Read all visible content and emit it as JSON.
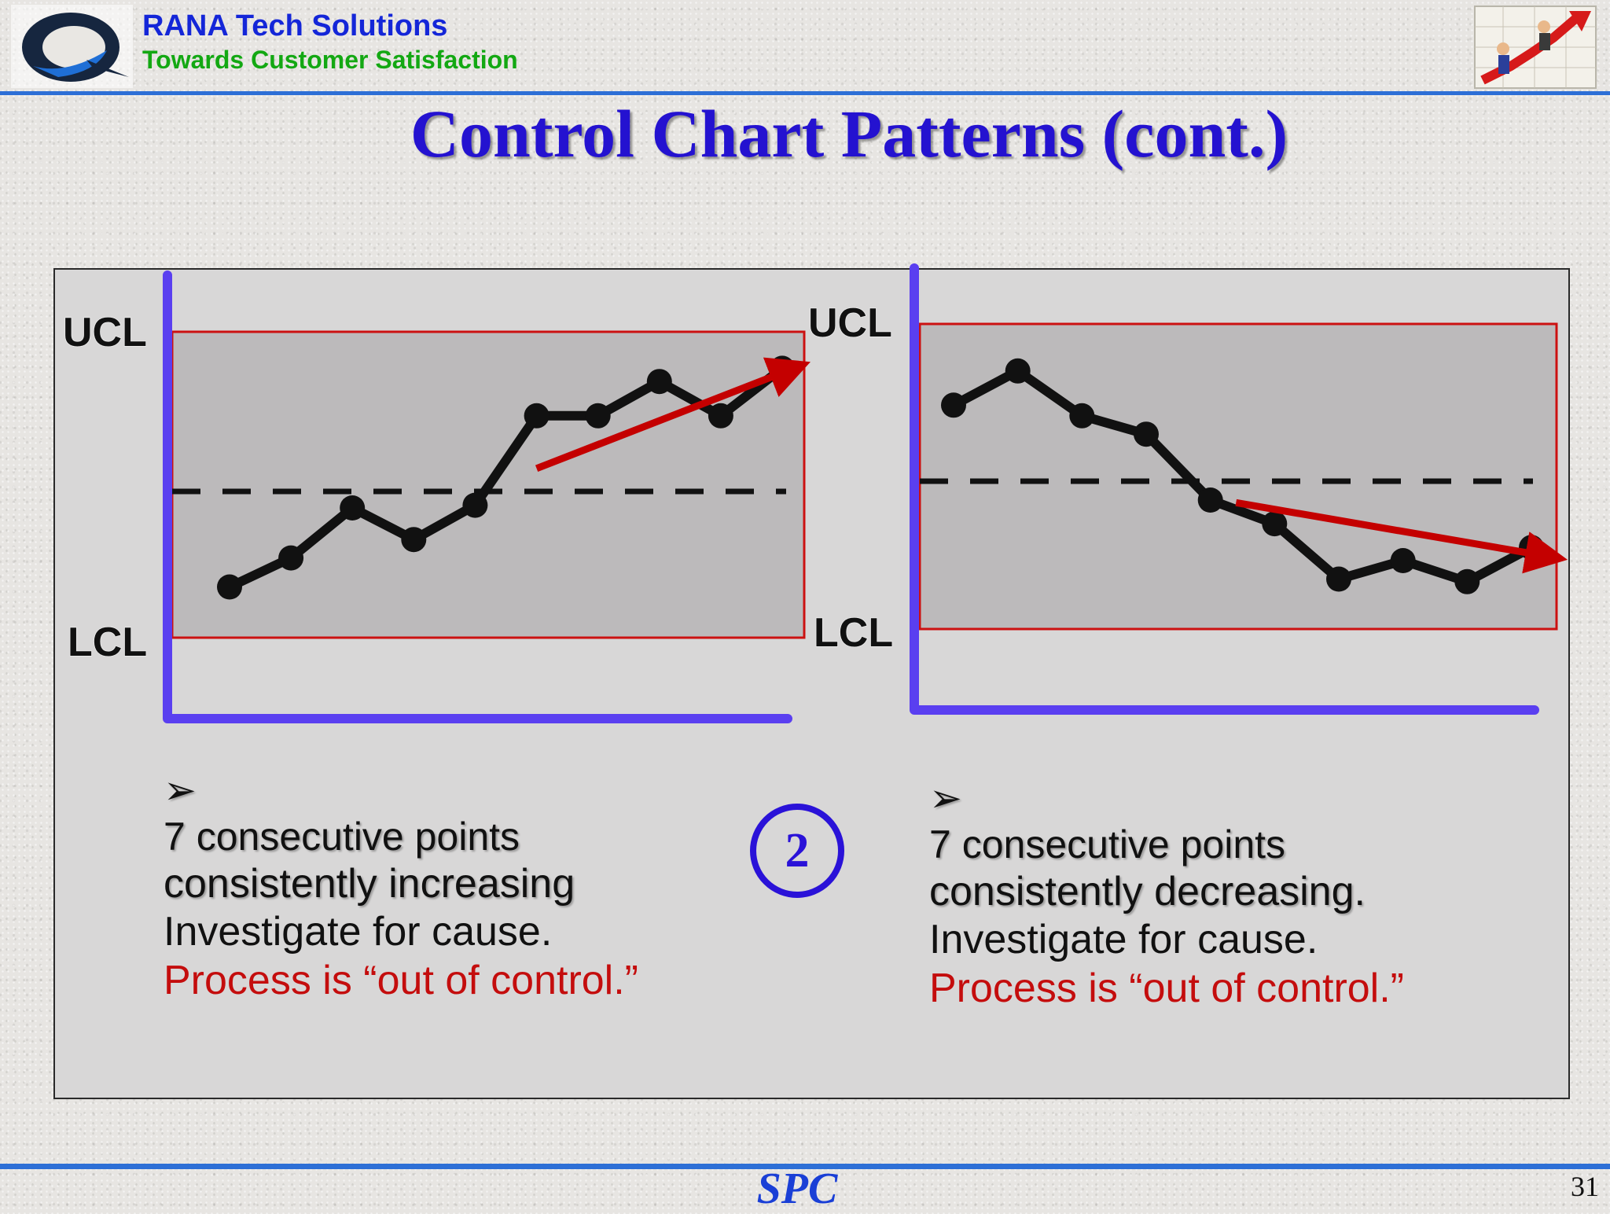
{
  "header": {
    "company": "RANA Tech Solutions",
    "tagline": "Towards Customer Satisfaction"
  },
  "title": "Control Chart Patterns (cont.)",
  "colors": {
    "title": "#2412d0",
    "axis": "#5a3ff0",
    "limit_lines": "#cc1111",
    "trend_arrow": "#c40000",
    "out_of_control_text": "#c40d0d",
    "header_rule": "#2d6fd6"
  },
  "charts": {
    "left": {
      "ucl_label": "UCL",
      "lcl_label": "LCL",
      "description": {
        "line1": "7 consecutive points",
        "line2": "consistently increasing",
        "line3": "Investigate for cause.",
        "line4": "Process is “out of control.”"
      }
    },
    "right": {
      "ucl_label": "UCL",
      "lcl_label": "LCL",
      "description": {
        "line1": "7 consecutive points",
        "line2": "consistently decreasing.",
        "line3": "Investigate for cause.",
        "line4": "Process is “out of control.”"
      }
    }
  },
  "badge_number": "2",
  "footer": {
    "label": "SPC",
    "page_number": "31"
  },
  "chart_data": [
    {
      "type": "line",
      "pattern": "increasing trend",
      "values": [
        0.1,
        0.21,
        0.4,
        0.28,
        0.41,
        0.75,
        0.75,
        0.88,
        0.75,
        0.93
      ],
      "ylim": [
        0,
        1
      ],
      "center_line": 0.48,
      "trend_arrow": [
        [
          5,
          0.55
        ],
        [
          9.3,
          0.94
        ]
      ]
    },
    {
      "type": "line",
      "pattern": "decreasing trend",
      "values": [
        0.79,
        0.92,
        0.75,
        0.68,
        0.43,
        0.34,
        0.13,
        0.2,
        0.12,
        0.25
      ],
      "ylim": [
        0,
        1
      ],
      "center_line": 0.48,
      "trend_arrow": [
        [
          4.4,
          0.42
        ],
        [
          9.4,
          0.21
        ]
      ]
    }
  ]
}
